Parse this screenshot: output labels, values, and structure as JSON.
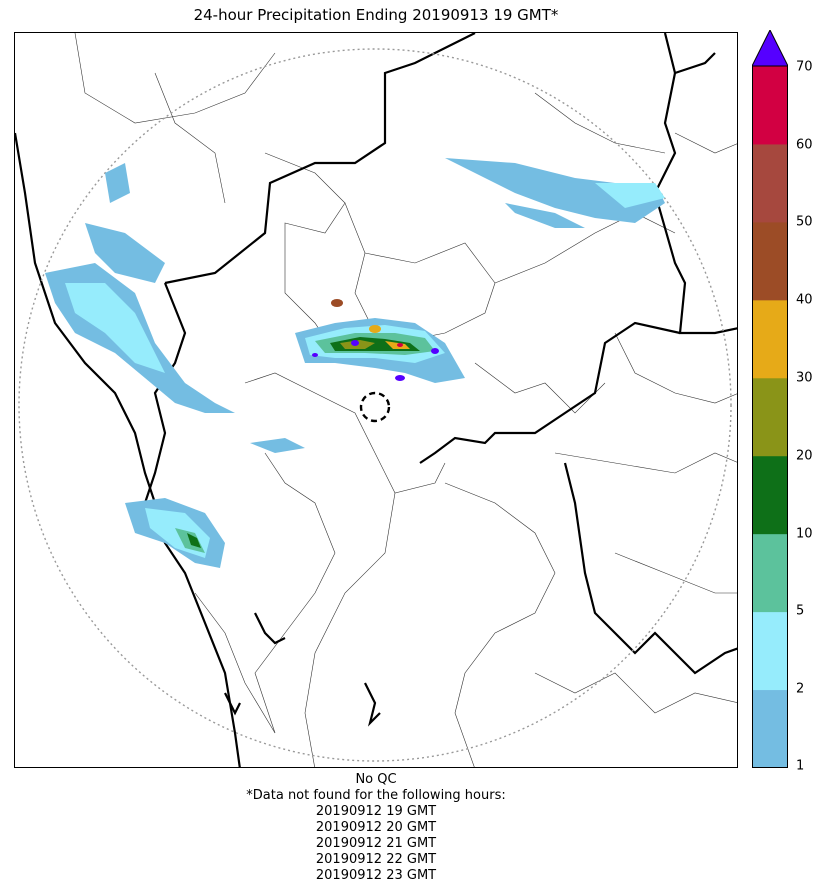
{
  "title": "24-hour Precipitation Ending 20190913 19 GMT*",
  "colorbar": {
    "ticks": [
      "1",
      "2",
      "5",
      "10",
      "20",
      "30",
      "40",
      "50",
      "60",
      "70"
    ],
    "colors": [
      "#74bde2",
      "#96ecfc",
      "#5cc29c",
      "#0e7018",
      "#8a9418",
      "#e6aa18",
      "#9c4c26",
      "#a6483e",
      "#d20042"
    ],
    "over_color": "#5500ff"
  },
  "footer": {
    "qc": "No QC",
    "missing_header": "*Data not found for the following hours:",
    "missing_hours": [
      "20190912 19 GMT",
      "20190912 20 GMT",
      "20190912 21 GMT",
      "20190912 22 GMT",
      "20190912 23 GMT"
    ]
  },
  "chart_data": {
    "type": "heatmap",
    "title": "24-hour Precipitation Ending 20190913 19 GMT*",
    "colorbar_boundaries": [
      1,
      2,
      5,
      10,
      20,
      30,
      40,
      50,
      60,
      70
    ],
    "colorbar_extend": "max",
    "features": [
      "radar range ring (dotted)",
      "radar location (dashed circle)",
      "state boundaries (thick)",
      "district boundaries (thin)"
    ]
  }
}
